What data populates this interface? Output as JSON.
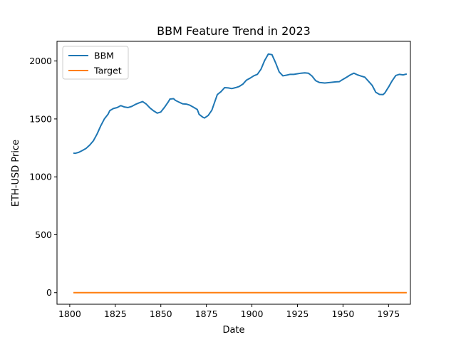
{
  "chart_data": {
    "type": "line",
    "title": "BBM Feature Trend in 2023",
    "xlabel": "Date",
    "ylabel": "ETH-USD Price",
    "xlim": [
      1793,
      1987
    ],
    "ylim": [
      -100,
      2170
    ],
    "x_ticks": [
      1800,
      1825,
      1850,
      1875,
      1900,
      1925,
      1950,
      1975
    ],
    "y_ticks": [
      0,
      500,
      1000,
      1500,
      2000
    ],
    "grid": false,
    "legend_position": "top-left",
    "series": [
      {
        "name": "BBM",
        "color": "#1f77b4",
        "points": [
          [
            1802,
            1205
          ],
          [
            1803,
            1203
          ],
          [
            1805,
            1212
          ],
          [
            1807,
            1228
          ],
          [
            1809,
            1246
          ],
          [
            1811,
            1275
          ],
          [
            1813,
            1312
          ],
          [
            1815,
            1370
          ],
          [
            1817,
            1440
          ],
          [
            1819,
            1500
          ],
          [
            1821,
            1540
          ],
          [
            1822,
            1572
          ],
          [
            1824,
            1590
          ],
          [
            1826,
            1598
          ],
          [
            1828,
            1615
          ],
          [
            1830,
            1603
          ],
          [
            1832,
            1598
          ],
          [
            1834,
            1608
          ],
          [
            1836,
            1625
          ],
          [
            1838,
            1638
          ],
          [
            1840,
            1650
          ],
          [
            1842,
            1628
          ],
          [
            1844,
            1595
          ],
          [
            1846,
            1570
          ],
          [
            1848,
            1550
          ],
          [
            1850,
            1560
          ],
          [
            1852,
            1600
          ],
          [
            1854,
            1645
          ],
          [
            1855,
            1672
          ],
          [
            1857,
            1675
          ],
          [
            1858,
            1660
          ],
          [
            1860,
            1645
          ],
          [
            1862,
            1630
          ],
          [
            1864,
            1628
          ],
          [
            1866,
            1618
          ],
          [
            1868,
            1600
          ],
          [
            1870,
            1582
          ],
          [
            1871,
            1540
          ],
          [
            1873,
            1515
          ],
          [
            1874,
            1508
          ],
          [
            1876,
            1530
          ],
          [
            1878,
            1575
          ],
          [
            1880,
            1665
          ],
          [
            1881,
            1710
          ],
          [
            1883,
            1735
          ],
          [
            1885,
            1770
          ],
          [
            1887,
            1768
          ],
          [
            1889,
            1762
          ],
          [
            1891,
            1770
          ],
          [
            1893,
            1780
          ],
          [
            1895,
            1800
          ],
          [
            1897,
            1835
          ],
          [
            1899,
            1852
          ],
          [
            1901,
            1872
          ],
          [
            1903,
            1885
          ],
          [
            1905,
            1930
          ],
          [
            1907,
            2005
          ],
          [
            1909,
            2060
          ],
          [
            1911,
            2055
          ],
          [
            1913,
            1985
          ],
          [
            1915,
            1905
          ],
          [
            1917,
            1872
          ],
          [
            1919,
            1878
          ],
          [
            1921,
            1885
          ],
          [
            1923,
            1885
          ],
          [
            1925,
            1890
          ],
          [
            1927,
            1895
          ],
          [
            1929,
            1898
          ],
          [
            1931,
            1895
          ],
          [
            1933,
            1870
          ],
          [
            1935,
            1830
          ],
          [
            1937,
            1815
          ],
          [
            1940,
            1810
          ],
          [
            1943,
            1815
          ],
          [
            1946,
            1820
          ],
          [
            1948,
            1822
          ],
          [
            1950,
            1842
          ],
          [
            1952,
            1860
          ],
          [
            1954,
            1880
          ],
          [
            1956,
            1895
          ],
          [
            1958,
            1880
          ],
          [
            1960,
            1870
          ],
          [
            1962,
            1860
          ],
          [
            1964,
            1825
          ],
          [
            1966,
            1790
          ],
          [
            1968,
            1730
          ],
          [
            1970,
            1712
          ],
          [
            1972,
            1710
          ],
          [
            1973,
            1725
          ],
          [
            1975,
            1775
          ],
          [
            1977,
            1830
          ],
          [
            1979,
            1875
          ],
          [
            1981,
            1885
          ],
          [
            1983,
            1880
          ],
          [
            1985,
            1888
          ]
        ]
      },
      {
        "name": "Target",
        "color": "#ff7f0e",
        "points": [
          [
            1802,
            0
          ],
          [
            1985,
            0
          ]
        ]
      }
    ]
  }
}
